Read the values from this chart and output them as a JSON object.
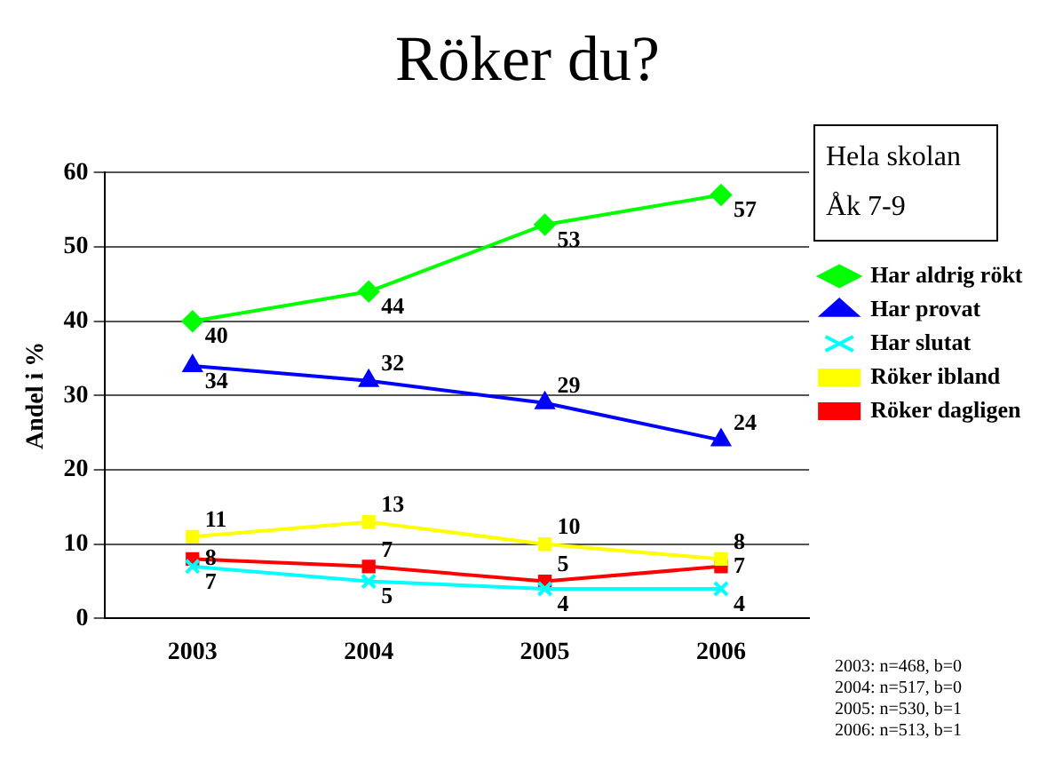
{
  "chart_data": {
    "type": "line",
    "title": "Röker du?",
    "ylabel": "Andel i %",
    "categories": [
      "2003",
      "2004",
      "2005",
      "2006"
    ],
    "series": [
      {
        "name": "Har aldrig rökt",
        "color": "#00ff00",
        "marker": "diamond",
        "values": [
          40,
          44,
          53,
          57
        ]
      },
      {
        "name": "Har provat",
        "color": "#0000ff",
        "marker": "triangle",
        "values": [
          34,
          32,
          29,
          24
        ]
      },
      {
        "name": "Har slutat",
        "color": "#00ffff",
        "marker": "cross",
        "values": [
          7,
          5,
          4,
          4
        ]
      },
      {
        "name": "Röker ibland",
        "color": "#ffff00",
        "marker": "square",
        "values": [
          11,
          13,
          10,
          8
        ]
      },
      {
        "name": "Röker dagligen",
        "color": "#ff0000",
        "marker": "square",
        "values": [
          8,
          7,
          5,
          7
        ]
      }
    ],
    "ylim": [
      0,
      60
    ],
    "yticks": [
      0,
      10,
      20,
      30,
      40,
      50,
      60
    ],
    "grid": "y",
    "legend": "right",
    "data_labels": true,
    "annotations": [
      "Hela skolan",
      "Åk 7-9",
      "2003: n=468, b=0",
      "2004: n=517, b=0",
      "2005: n=530, b=1",
      "2006: n=513, b=1"
    ]
  }
}
